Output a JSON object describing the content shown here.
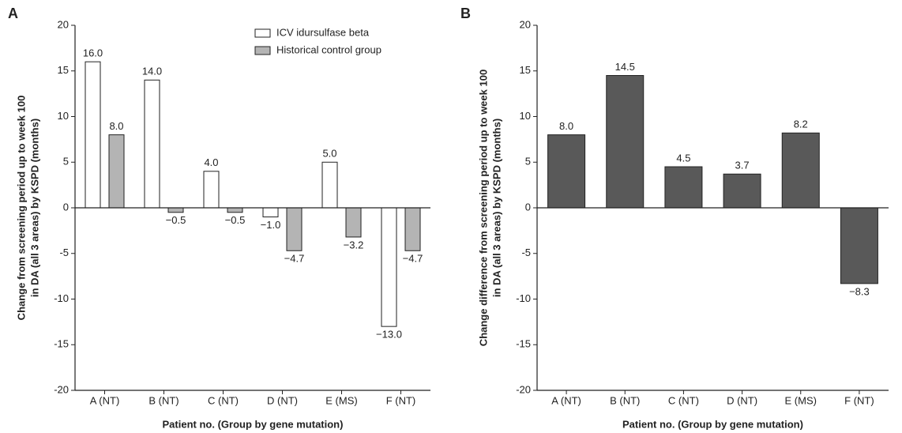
{
  "chart_data": [
    {
      "type": "bar",
      "panel_label": "A",
      "categories": [
        "A (NT)",
        "B (NT)",
        "C (NT)",
        "D (NT)",
        "E (MS)",
        "F (NT)"
      ],
      "series": [
        {
          "name": "ICV idursulfase beta",
          "color": "#ffffff",
          "values": [
            16,
            14,
            4,
            -1,
            5,
            -13
          ],
          "value_labels": [
            "16.0",
            "14.0",
            "4.0",
            "−1.0",
            "5.0",
            "−13.0"
          ]
        },
        {
          "name": "Historical control group",
          "color": "#b4b4b4",
          "values": [
            8,
            -0.5,
            -0.5,
            -4.7,
            -3.2,
            -4.7
          ],
          "value_labels": [
            "8.0",
            "−0.5",
            "−0.5",
            "−4.7",
            "−3.2",
            "−4.7"
          ]
        }
      ],
      "ylim": [
        -20,
        20
      ],
      "yticks": [
        -20,
        -15,
        -10,
        -5,
        0,
        5,
        10,
        15,
        20
      ],
      "xlabel": "Patient no. (Group by gene mutation)",
      "ylabel": [
        "Change from screening period up to week 100",
        "in DA (all 3 areas) by KSPD (months)"
      ],
      "legend": "top-right"
    },
    {
      "type": "bar",
      "panel_label": "B",
      "categories": [
        "A (NT)",
        "B (NT)",
        "C (NT)",
        "D (NT)",
        "E (MS)",
        "F (NT)"
      ],
      "color": "#595959",
      "values": [
        8.0,
        14.5,
        4.5,
        3.7,
        8.2,
        -8.3
      ],
      "value_labels": [
        "8.0",
        "14.5",
        "4.5",
        "3.7",
        "8.2",
        "−8.3"
      ],
      "ylim": [
        -20,
        20
      ],
      "yticks": [
        -20,
        -15,
        -10,
        -5,
        0,
        5,
        10,
        15,
        20
      ],
      "xlabel": "Patient no. (Group by gene mutation)",
      "ylabel": [
        "Change difference from screening period up to week 100",
        "in DA (all 3 areas) by KSPD (months)"
      ]
    }
  ]
}
